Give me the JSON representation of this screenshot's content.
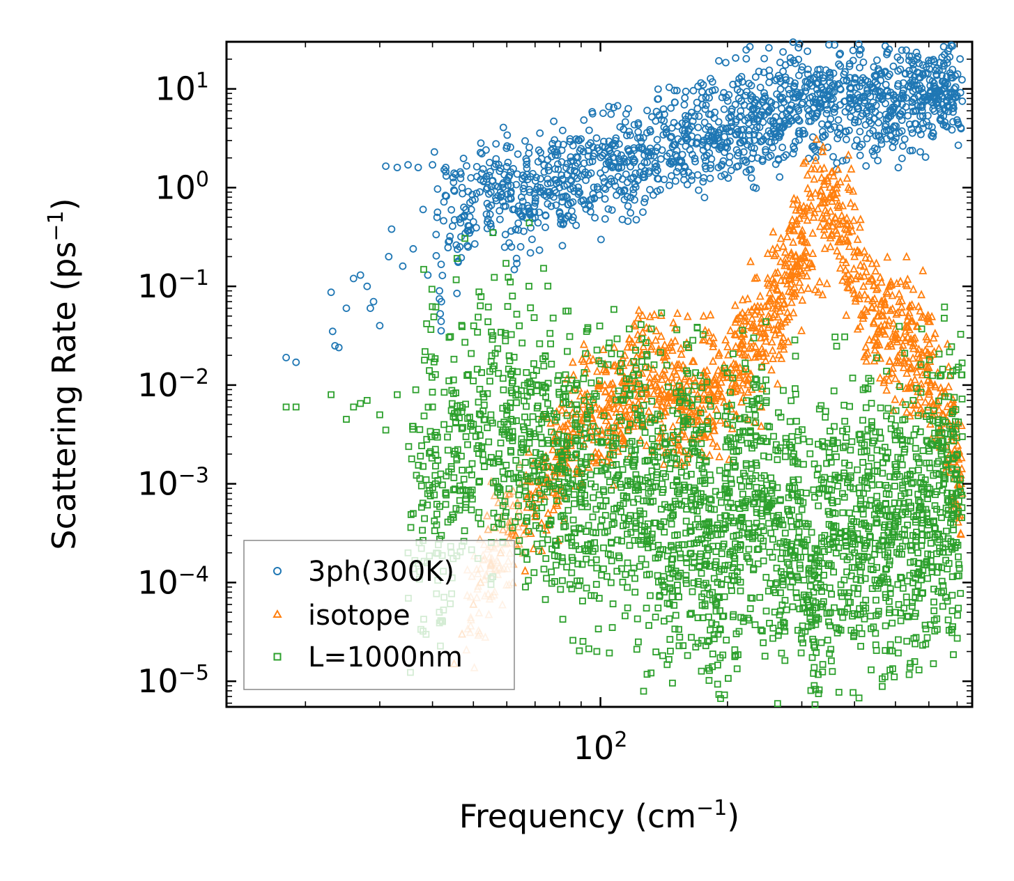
{
  "chart_data": {
    "type": "scatter",
    "xscale": "log",
    "yscale": "log",
    "xlim": [
      13,
      760
    ],
    "ylim": [
      5.5e-06,
      30
    ],
    "xlabel": "Frequency (cm",
    "xlabel_sup": "−1",
    "xlabel_tail": ")",
    "ylabel": "Scattering Rate (ps",
    "ylabel_sup": "−1",
    "ylabel_tail": ")",
    "x_ticks": [
      {
        "base": "10",
        "exp": "2",
        "value": 100
      }
    ],
    "y_ticks": [
      {
        "base": "10",
        "exp": "1",
        "value": 10
      },
      {
        "base": "10",
        "exp": "0",
        "value": 1
      },
      {
        "base": "10",
        "exp": "−1",
        "value": 0.1
      },
      {
        "base": "10",
        "exp": "−2",
        "value": 0.01
      },
      {
        "base": "10",
        "exp": "−3",
        "value": 0.001
      },
      {
        "base": "10",
        "exp": "−4",
        "value": 0.0001
      },
      {
        "base": "10",
        "exp": "−5",
        "value": 1e-05
      }
    ],
    "legend_position": "lower-left",
    "series": [
      {
        "name": "3ph(300K)",
        "marker": "circle",
        "color": "#1f77b4",
        "x": [
          18,
          19,
          23,
          23.2,
          23.5,
          24,
          25,
          26,
          27,
          28,
          28.5,
          29,
          30,
          31,
          31.5,
          32,
          33,
          34,
          35,
          36,
          37,
          38,
          39,
          40,
          41,
          42,
          43,
          44,
          45,
          46,
          47,
          48,
          50,
          52,
          55,
          58,
          60,
          62,
          65,
          68,
          70,
          72,
          75,
          78,
          80,
          85,
          90,
          95,
          100,
          110,
          120,
          130,
          140,
          150,
          160,
          170,
          180,
          190,
          200,
          220,
          240,
          250,
          260,
          270,
          280,
          300,
          320,
          340,
          360,
          380,
          400,
          420,
          450,
          480,
          500,
          520,
          550,
          580,
          600,
          620,
          650,
          680,
          700,
          720
        ],
        "y": [
          0.019,
          0.017,
          0.087,
          0.035,
          0.025,
          0.024,
          0.06,
          0.12,
          0.13,
          0.1,
          0.06,
          0.07,
          0.04,
          1.65,
          0.2,
          0.38,
          1.6,
          0.16,
          1.7,
          0.24,
          1.6,
          0.6,
          0.13,
          1.7,
          0.5,
          0.07,
          1.6,
          0.32,
          1.4,
          0.18,
          1.0,
          0.6,
          0.45,
          1.2,
          0.9,
          0.8,
          1.2,
          0.6,
          0.8,
          0.9,
          0.7,
          1.0,
          1.1,
          1.2,
          1.0,
          1.2,
          1.3,
          1.4,
          1.4,
          1.6,
          1.8,
          2.1,
          2.4,
          2.7,
          3.0,
          3.2,
          3.3,
          3.6,
          4.0,
          4.8,
          5.4,
          5.8,
          5.2,
          5.4,
          6.2,
          7.0,
          7.3,
          8.0,
          6.5,
          7.5,
          7.8,
          8.2,
          6.8,
          8.5,
          8.2,
          9.0,
          9.5,
          9.2,
          8.3,
          9.5,
          10.0,
          9.2,
          8.5,
          7.5
        ]
      },
      {
        "name": "isotope",
        "marker": "triangle",
        "color": "#ff7f0e",
        "x": [
          45,
          47,
          50,
          52,
          55,
          58,
          60,
          63,
          66,
          70,
          72,
          75,
          78,
          80,
          85,
          90,
          95,
          100,
          105,
          110,
          115,
          120,
          125,
          130,
          135,
          140,
          145,
          150,
          155,
          160,
          170,
          180,
          190,
          200,
          210,
          220,
          240,
          250,
          260,
          270,
          280,
          290,
          300,
          320,
          340,
          360,
          380,
          400,
          420,
          450,
          480,
          500,
          520,
          550,
          580,
          600,
          620,
          650,
          680,
          700,
          720
        ],
        "y": [
          1.5e-05,
          3e-05,
          6e-05,
          0.0001,
          0.00015,
          0.0002,
          0.00025,
          0.0003,
          0.0004,
          0.0005,
          0.0007,
          0.001,
          0.0014,
          0.002,
          0.003,
          0.004,
          0.005,
          0.005,
          0.006,
          0.007,
          0.008,
          0.009,
          0.01,
          0.015,
          0.01,
          0.009,
          0.008,
          0.007,
          0.006,
          0.007,
          0.008,
          0.009,
          0.01,
          0.012,
          0.015,
          0.02,
          0.03,
          0.05,
          0.06,
          0.08,
          0.12,
          0.2,
          0.3,
          0.5,
          0.7,
          0.5,
          0.3,
          0.2,
          0.1,
          0.06,
          0.04,
          0.03,
          0.03,
          0.025,
          0.02,
          0.015,
          0.01,
          0.005,
          0.003,
          0.0015,
          0.0008
        ]
      },
      {
        "name": "L=1000nm",
        "marker": "square",
        "color": "#2ca02c",
        "x": [
          18,
          19,
          23,
          25,
          26,
          27,
          28,
          30,
          31,
          33,
          35,
          36,
          38,
          40,
          42,
          45,
          48,
          50,
          52,
          55,
          58,
          60,
          62,
          65,
          68,
          70,
          72,
          75,
          78,
          80,
          85,
          90,
          95,
          100,
          110,
          120,
          130,
          140,
          150,
          160,
          170,
          180,
          190,
          200,
          210,
          220,
          240,
          250,
          260,
          270,
          280,
          300,
          320,
          340,
          360,
          380,
          400,
          420,
          450,
          480,
          500,
          520,
          550,
          580,
          600,
          620,
          650,
          680,
          700,
          720
        ],
        "y": [
          0.006,
          0.006,
          0.008,
          0.0045,
          0.006,
          0.0065,
          0.007,
          0.005,
          0.0035,
          0.008,
          0.0002,
          0.0005,
          0.0015,
          0.006,
          0.0003,
          0.002,
          0.003,
          0.004,
          0.005,
          0.005,
          0.004,
          0.005,
          0.003,
          0.0025,
          0.003,
          0.003,
          0.002,
          0.0015,
          0.0012,
          0.0015,
          0.001,
          0.0008,
          0.001,
          0.0006,
          0.0012,
          0.0015,
          0.0008,
          0.001,
          0.0003,
          0.0012,
          0.0008,
          0.0004,
          3e-05,
          0.0008,
          0.0003,
          0.0012,
          0.0005,
          0.0007,
          0.0004,
          0.0002,
          0.0009,
          0.00025,
          8e-05,
          0.0003,
          0.0005,
          0.0003,
          0.0002,
          0.0008,
          0.0004,
          0.0002,
          0.0004,
          0.0009,
          0.0003,
          0.0004,
          0.0008,
          0.0006,
          0.001,
          0.0008,
          0.0005,
          0.003
        ]
      }
    ]
  }
}
